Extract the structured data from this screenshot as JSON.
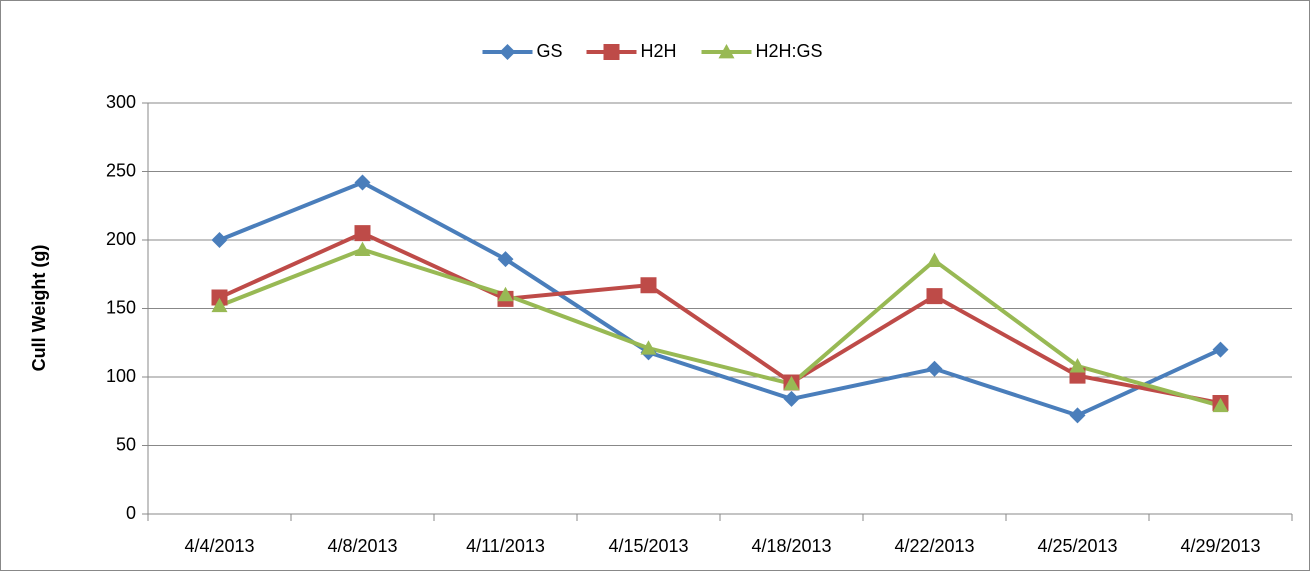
{
  "chart_data": {
    "type": "line",
    "y_label": "Cull Weight (g)",
    "categories": [
      "4/4/2013",
      "4/8/2013",
      "4/11/2013",
      "4/15/2013",
      "4/18/2013",
      "4/22/2013",
      "4/25/2013",
      "4/29/2013"
    ],
    "series": [
      {
        "name": "GS",
        "color": "#4a7ebb",
        "marker": "diamond",
        "values": [
          200,
          242,
          186,
          118,
          84,
          106,
          72,
          120
        ]
      },
      {
        "name": "H2H",
        "color": "#be4b48",
        "marker": "square",
        "values": [
          158,
          205,
          157,
          167,
          96,
          159,
          101,
          81
        ]
      },
      {
        "name": "H2H:GS",
        "color": "#98b954",
        "marker": "triangle",
        "values": [
          152,
          193,
          160,
          121,
          95,
          185,
          108,
          79
        ]
      }
    ],
    "ylim": [
      0,
      300
    ],
    "yticks": [
      0,
      50,
      100,
      150,
      200,
      250,
      300
    ],
    "grid": true,
    "legend": "top"
  }
}
